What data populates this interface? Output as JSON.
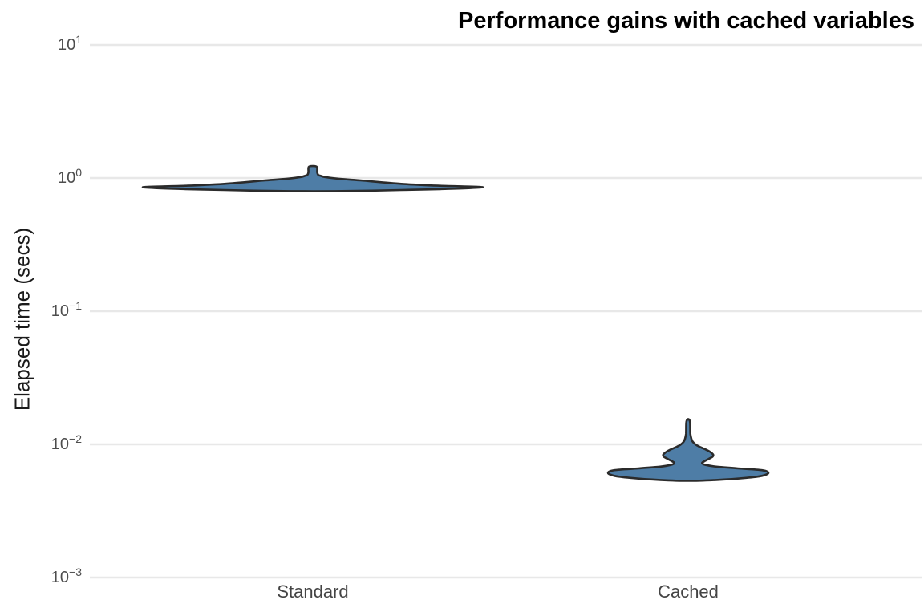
{
  "title": "Performance gains with cached variables",
  "y_axis": {
    "label": "Elapsed time (secs)",
    "scale": "log10",
    "tick_labels": [
      "10¹",
      "10⁰",
      "10⁻¹",
      "10⁻²",
      "10⁻³"
    ],
    "tick_exponents": [
      1,
      0,
      -1,
      -2,
      -3
    ],
    "tick_base": "10"
  },
  "x_axis": {
    "categories": [
      "Standard",
      "Cached"
    ]
  },
  "colors": {
    "violin_fill": "#4e7da6",
    "violin_stroke": "#2b2b2b",
    "gridline": "#e8e8e8",
    "tick_text": "#4d4d4d",
    "category_text": "#444444",
    "axis_title_text": "#1a1a1a",
    "title_text": "#000000",
    "background": "#ffffff"
  },
  "chart_data": {
    "type": "violin",
    "title": "Performance gains with cached variables",
    "xlabel": "",
    "ylabel": "Elapsed time (secs)",
    "yscale": "log10",
    "ylim": [
      0.001,
      10
    ],
    "grid": "horizontal-major-only",
    "legend": "none",
    "categories": [
      "Standard",
      "Cached"
    ],
    "series": [
      {
        "name": "Standard",
        "approx_mode_secs": 0.85,
        "min_secs": 0.795,
        "max_secs": 1.23,
        "density_profile": [
          [
            0.795,
            0.0
          ],
          [
            0.8,
            0.26
          ],
          [
            0.812,
            0.52
          ],
          [
            0.825,
            0.75
          ],
          [
            0.852,
            1.0
          ],
          [
            0.874,
            0.75
          ],
          [
            0.904,
            0.52
          ],
          [
            0.959,
            0.28
          ],
          [
            0.991,
            0.14
          ],
          [
            1.017,
            0.071
          ],
          [
            1.043,
            0.042
          ],
          [
            1.05,
            0.033
          ],
          [
            1.1,
            0.026
          ],
          [
            1.21,
            0.024
          ],
          [
            1.23,
            0.0
          ]
        ]
      },
      {
        "name": "Cached",
        "approx_mode_secs": 0.0061,
        "min_secs": 0.00532,
        "max_secs": 0.0155,
        "density_profile": [
          [
            0.00532,
            0.0
          ],
          [
            0.0054,
            0.35
          ],
          [
            0.0056,
            0.72
          ],
          [
            0.0058,
            0.92
          ],
          [
            0.0061,
            1.0
          ],
          [
            0.0064,
            0.92
          ],
          [
            0.0066,
            0.62
          ],
          [
            0.0068,
            0.35
          ],
          [
            0.007,
            0.22
          ],
          [
            0.0072,
            0.175
          ],
          [
            0.0074,
            0.19
          ],
          [
            0.0078,
            0.26
          ],
          [
            0.0081,
            0.305
          ],
          [
            0.0084,
            0.31
          ],
          [
            0.0088,
            0.27
          ],
          [
            0.0092,
            0.21
          ],
          [
            0.0096,
            0.14
          ],
          [
            0.01,
            0.09
          ],
          [
            0.0105,
            0.055
          ],
          [
            0.011,
            0.04
          ],
          [
            0.012,
            0.027
          ],
          [
            0.014,
            0.025
          ],
          [
            0.015,
            0.02
          ],
          [
            0.0155,
            0.0
          ]
        ]
      }
    ]
  }
}
